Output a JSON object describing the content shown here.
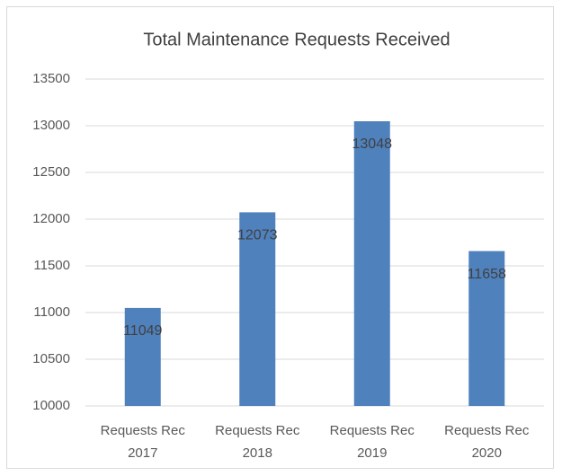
{
  "chart_data": {
    "type": "bar",
    "title": "Total Maintenance Requests Received",
    "categories": [
      "Requests Rec 2017",
      "Requests Rec 2018",
      "Requests Rec 2019",
      "Requests Rec 2020"
    ],
    "values": [
      11049,
      12073,
      13048,
      11658
    ],
    "color": "#4f81bd",
    "ylim": [
      10000,
      13500
    ],
    "yticks": [
      10000,
      10500,
      11000,
      11500,
      12000,
      12500,
      13000,
      13500
    ],
    "grid": true
  }
}
